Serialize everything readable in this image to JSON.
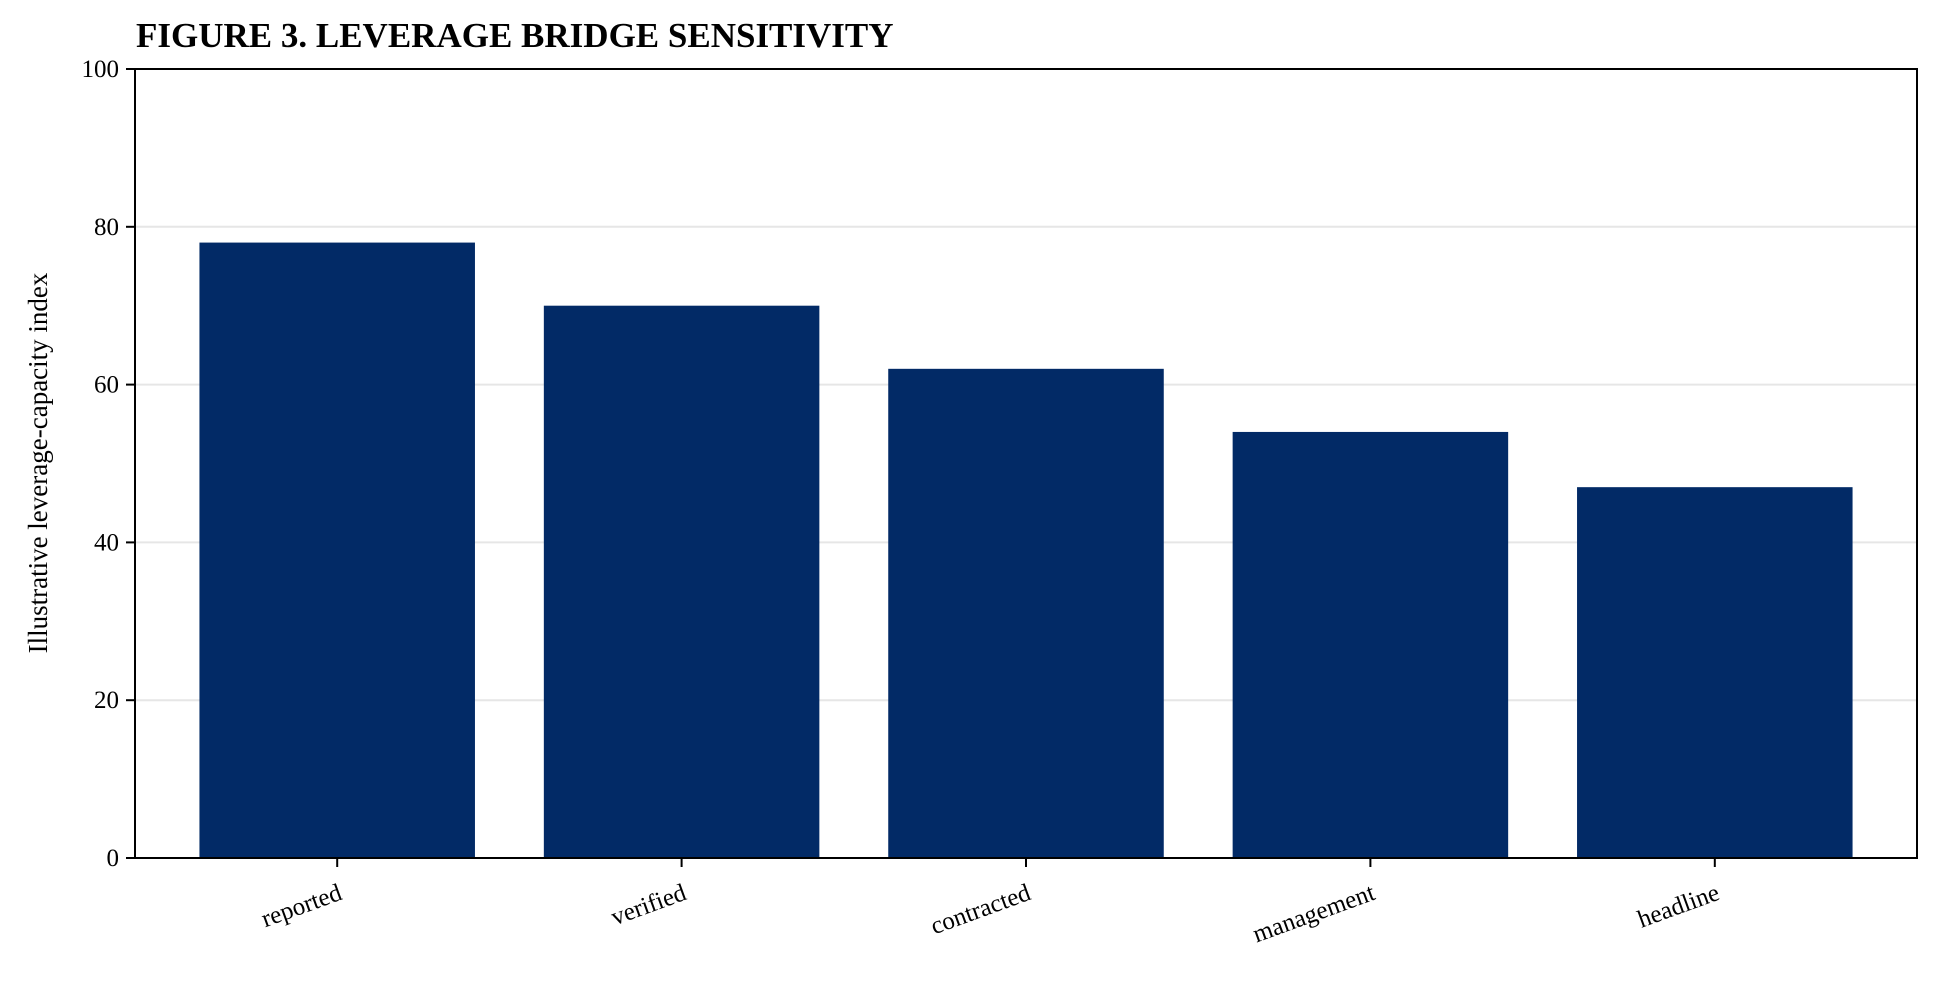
{
  "chart_data": {
    "type": "bar",
    "title": "FIGURE 3. LEVERAGE BRIDGE SENSITIVITY",
    "xlabel": "",
    "ylabel": "Illustrative leverage-capacity index",
    "categories": [
      "reported",
      "verified",
      "contracted",
      "management",
      "headline"
    ],
    "values": [
      78,
      70,
      62,
      54,
      47
    ],
    "ylim": [
      0,
      100
    ],
    "yticks": [
      0,
      20,
      40,
      60,
      80,
      100
    ],
    "grid": "horizontal",
    "legend": "none",
    "bar_color": "#022a66",
    "grid_color": "#e6e6e6"
  }
}
